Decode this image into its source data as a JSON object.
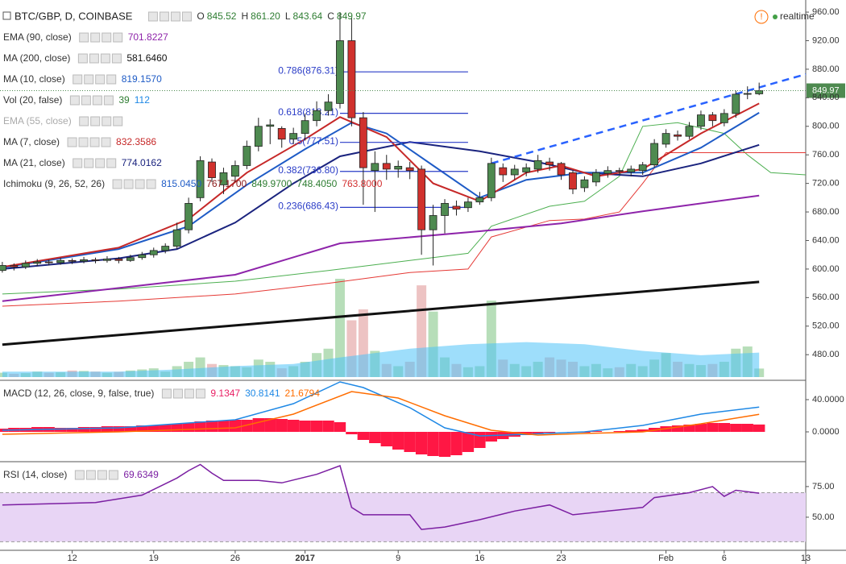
{
  "header": {
    "ohlc": [
      {
        "key": "O",
        "text": "845.52"
      },
      {
        "key": "H",
        "text": "861.20"
      },
      {
        "key": "L",
        "text": "843.64"
      },
      {
        "key": "C",
        "text": "849.97"
      }
    ],
    "status": "realtime"
  },
  "indicators": [
    {
      "name": "EMA (90, close)",
      "values": [
        {
          "text": "701.8227",
          "color": "#8e24aa"
        }
      ]
    },
    {
      "name": "MA (200, close)",
      "values": [
        {
          "text": "581.6460",
          "color": "#111111"
        }
      ]
    },
    {
      "name": "MA (10, close)",
      "values": [
        {
          "text": "819.1570",
          "color": "#1e5bc6"
        }
      ]
    },
    {
      "name": "Vol (20, false)",
      "values": [
        {
          "text": "39",
          "color": "#2e7d32"
        },
        {
          "text": "112",
          "color": "#1e88e5"
        }
      ]
    },
    {
      "name": "EMA (55, close)",
      "muted": true,
      "values": []
    },
    {
      "name": "MA (7, close)",
      "values": [
        {
          "text": "832.3586",
          "color": "#c62828"
        }
      ]
    },
    {
      "name": "MA (21, close)",
      "values": [
        {
          "text": "774.0162",
          "color": "#1a237e"
        }
      ]
    },
    {
      "name": "Ichimoku (9, 26, 52, 26)",
      "values": [
        {
          "text": "815.0450",
          "color": "#1e5bc6"
        },
        {
          "text": "767.1700",
          "color": "#8b1a1a"
        },
        {
          "text": "849.9700",
          "color": "#2e7d32"
        },
        {
          "text": "748.4050",
          "color": "#2e7d32"
        },
        {
          "text": "763.8000",
          "color": "#d32f2f"
        }
      ]
    }
  ],
  "chart_data": [
    {
      "type": "candlestick",
      "title": "BTC/GBP, D, COINBASE",
      "xlim": [
        -0.2,
        69
      ],
      "ylim": [
        452,
        977
      ],
      "xticks": [
        {
          "value": 6,
          "label": "12"
        },
        {
          "value": 13,
          "label": "19"
        },
        {
          "value": 20,
          "label": "26"
        },
        {
          "value": 26,
          "label": "2017"
        },
        {
          "value": 34,
          "label": "9"
        },
        {
          "value": 41,
          "label": "16"
        },
        {
          "value": 48,
          "label": "23"
        },
        {
          "value": 57,
          "label": "Feb"
        },
        {
          "value": 62,
          "label": "6"
        },
        {
          "value": 69,
          "label": "13"
        }
      ],
      "yticks": [
        {
          "value": 960,
          "label": "960.00"
        },
        {
          "value": 920,
          "label": "920.00"
        },
        {
          "value": 880,
          "label": "880.00"
        },
        {
          "value": 840,
          "label": "840.00"
        },
        {
          "value": 800,
          "label": "800.00"
        },
        {
          "value": 760,
          "label": "760.00"
        },
        {
          "value": 720,
          "label": "720.00"
        },
        {
          "value": 680,
          "label": "680.00"
        },
        {
          "value": 640,
          "label": "640.00"
        },
        {
          "value": 600,
          "label": "600.00"
        },
        {
          "value": 560,
          "label": "560.00"
        },
        {
          "value": 520,
          "label": "520.00"
        },
        {
          "value": 480,
          "label": "480.00"
        }
      ],
      "up_color": "#4e8a50",
      "down_color": "#d0312d",
      "open": [
        598,
        605,
        603,
        608,
        610,
        609,
        612,
        611,
        613,
        612,
        614,
        612,
        616,
        620,
        626,
        632,
        655,
        700,
        750,
        718,
        730,
        745,
        772,
        800,
        797,
        782,
        790,
        808,
        822,
        832,
        920,
        812,
        738,
        748,
        740,
        742,
        740,
        655,
        675,
        688,
        686,
        694,
        700,
        742,
        732,
        736,
        740,
        750,
        748,
        735,
        714,
        722,
        734,
        738,
        736,
        738,
        746,
        775,
        788,
        786,
        800,
        816,
        805,
        818,
        845,
        845.52
      ],
      "high": [
        610,
        608,
        612,
        614,
        613,
        616,
        615,
        617,
        616,
        618,
        617,
        620,
        624,
        630,
        636,
        665,
        700,
        758,
        755,
        742,
        752,
        780,
        812,
        810,
        800,
        798,
        818,
        835,
        845,
        960,
        952,
        820,
        765,
        760,
        752,
        750,
        745,
        690,
        698,
        696,
        700,
        708,
        756,
        748,
        746,
        748,
        760,
        756,
        750,
        738,
        730,
        740,
        744,
        742,
        745,
        750,
        782,
        796,
        794,
        806,
        822,
        820,
        824,
        850,
        856,
        861.2
      ],
      "low": [
        595,
        598,
        600,
        604,
        605,
        606,
        607,
        608,
        608,
        609,
        608,
        610,
        613,
        616,
        622,
        628,
        650,
        695,
        722,
        705,
        722,
        740,
        765,
        775,
        770,
        775,
        780,
        800,
        815,
        825,
        800,
        690,
        680,
        725,
        728,
        726,
        620,
        605,
        650,
        675,
        680,
        690,
        695,
        722,
        725,
        730,
        735,
        738,
        725,
        705,
        708,
        716,
        728,
        732,
        730,
        732,
        742,
        770,
        780,
        782,
        795,
        800,
        800,
        812,
        838,
        843.64
      ],
      "close": [
        605,
        603,
        608,
        610,
        609,
        612,
        611,
        613,
        612,
        614,
        612,
        616,
        620,
        626,
        632,
        655,
        692,
        752,
        728,
        735,
        745,
        772,
        800,
        802,
        782,
        790,
        808,
        822,
        834,
        920,
        812,
        742,
        748,
        740,
        744,
        738,
        655,
        675,
        692,
        684,
        694,
        700,
        748,
        732,
        740,
        742,
        752,
        746,
        732,
        712,
        725,
        735,
        738,
        737,
        740,
        746,
        776,
        790,
        786,
        800,
        816,
        808,
        818,
        845,
        846,
        849.97
      ],
      "volume": {
        "up_color": "#a5d6a7",
        "down_color": "#e8b4b4",
        "values": [
          20,
          15,
          18,
          25,
          20,
          22,
          30,
          28,
          25,
          20,
          24,
          30,
          35,
          40,
          25,
          50,
          70,
          90,
          60,
          55,
          50,
          45,
          80,
          70,
          40,
          50,
          70,
          110,
          130,
          450,
          260,
          310,
          120,
          60,
          50,
          70,
          420,
          300,
          90,
          60,
          45,
          50,
          350,
          80,
          60,
          50,
          70,
          90,
          80,
          70,
          50,
          60,
          40,
          45,
          60,
          50,
          80,
          110,
          70,
          60,
          55,
          60,
          70,
          130,
          140,
          39
        ],
        "ma": {
          "color": "#4fc3f7",
          "x": [
            0,
            10,
            15,
            20,
            25,
            29,
            35,
            40,
            45,
            50,
            55,
            60,
            65
          ],
          "values": [
            25,
            25,
            35,
            50,
            60,
            90,
            130,
            150,
            160,
            150,
            120,
            100,
            112
          ]
        }
      },
      "series": [
        {
          "color": "#4caf50",
          "width": 1,
          "x": [
            0,
            10,
            20,
            28,
            35,
            40,
            42,
            47,
            50,
            53,
            55,
            58,
            62,
            64,
            66,
            69
          ],
          "values": [
            565,
            572,
            583,
            598,
            612,
            622,
            660,
            688,
            695,
            730,
            800,
            805,
            790,
            760,
            735,
            732
          ]
        },
        {
          "color": "#e53935",
          "width": 1,
          "x": [
            0,
            10,
            20,
            28,
            35,
            40,
            42,
            47,
            50,
            53,
            55,
            57,
            69
          ],
          "values": [
            548,
            555,
            565,
            580,
            595,
            600,
            645,
            668,
            670,
            680,
            720,
            763,
            763
          ]
        },
        {
          "color": "#111111",
          "width": 3,
          "x": [
            0,
            65
          ],
          "values": [
            494,
            582
          ]
        },
        {
          "color": "#8e24aa",
          "width": 2,
          "x": [
            0,
            20,
            29,
            41,
            48,
            55,
            65
          ],
          "values": [
            555,
            592,
            636,
            653,
            664,
            681,
            703
          ]
        },
        {
          "color": "#1a237e",
          "width": 2,
          "x": [
            0,
            10,
            15,
            20,
            25,
            29,
            35,
            41,
            46,
            50,
            55,
            60,
            65
          ],
          "values": [
            600,
            615,
            628,
            665,
            720,
            758,
            778,
            765,
            750,
            735,
            730,
            748,
            774
          ]
        },
        {
          "color": "#1e5bc6",
          "width": 2,
          "x": [
            0,
            10,
            16,
            21,
            26,
            30,
            33,
            37,
            41,
            45,
            50,
            55,
            60,
            65
          ],
          "values": [
            602,
            628,
            660,
            718,
            768,
            805,
            790,
            745,
            700,
            725,
            735,
            735,
            770,
            819
          ]
        },
        {
          "color": "#c62828",
          "width": 2,
          "x": [
            0,
            10,
            16,
            21,
            26,
            29,
            33,
            37,
            41,
            45,
            48,
            51,
            55,
            60,
            65
          ],
          "values": [
            603,
            630,
            670,
            735,
            782,
            813,
            785,
            720,
            695,
            735,
            745,
            730,
            740,
            790,
            832
          ]
        }
      ],
      "trendline": {
        "color": "#2962ff",
        "x": [
          42,
          69
        ],
        "values": [
          748,
          873
        ]
      },
      "fib": {
        "color": "#2a3cc7",
        "x": [
          29,
          40
        ],
        "levels": [
          {
            "value": 876.31,
            "label": "0.786(876.31)"
          },
          {
            "value": 818.21,
            "label": "0.618(818.21)"
          },
          {
            "value": 777.51,
            "label": "0.5(777.51)"
          },
          {
            "value": 736.8,
            "label": "0.382(736.80)"
          },
          {
            "value": 686.43,
            "label": "0.236(686.43)"
          }
        ]
      },
      "last_price": {
        "value": 849.97,
        "label": "849.97",
        "color": "#4e8a50"
      }
    },
    {
      "type": "macd",
      "title": "MACD (12, 26, close, 9, false, true)",
      "legend_values": [
        {
          "text": "9.1347",
          "color": "#e91e63"
        },
        {
          "text": "30.8141",
          "color": "#1e88e5"
        },
        {
          "text": "21.6794",
          "color": "#ff6d00"
        }
      ],
      "ylim": [
        -35,
        62
      ],
      "yticks": [
        {
          "value": 40,
          "label": "40.0000"
        },
        {
          "value": 0,
          "label": "0.0000"
        }
      ],
      "histogram": {
        "color": "#ff1744",
        "values": [
          4,
          5,
          5,
          6,
          6,
          5,
          5,
          6,
          6,
          7,
          7,
          7,
          8,
          8,
          9,
          10,
          11,
          13,
          14,
          14,
          15,
          15,
          17,
          17,
          16,
          15,
          14,
          14,
          14,
          12,
          -3,
          -10,
          -14,
          -18,
          -22,
          -25,
          -28,
          -30,
          -31,
          -29,
          -25,
          -20,
          -12,
          -9,
          -6,
          -4,
          -2,
          -1,
          0,
          -1,
          -1,
          1,
          0,
          1,
          2,
          3,
          5,
          7,
          8,
          9,
          10,
          11,
          11,
          10,
          10,
          9.13
        ]
      },
      "series": [
        {
          "color": "#1e88e5",
          "width": 1.5,
          "x": [
            0,
            10,
            20,
            25,
            29,
            31,
            35,
            38,
            41,
            45,
            50,
            55,
            60,
            65
          ],
          "values": [
            2,
            5,
            15,
            35,
            62,
            55,
            30,
            5,
            -5,
            -3,
            0,
            8,
            22,
            30.81
          ]
        },
        {
          "color": "#ff6d00",
          "width": 1.5,
          "x": [
            0,
            10,
            20,
            25,
            30,
            34,
            38,
            42,
            46,
            50,
            55,
            60,
            65
          ],
          "values": [
            -3,
            0,
            5,
            22,
            50,
            42,
            20,
            2,
            -4,
            -2,
            0,
            10,
            21.68
          ]
        }
      ]
    },
    {
      "type": "line",
      "title": "RSI (14, close)",
      "legend_values": [
        {
          "text": "69.6349",
          "color": "#7b1fa2"
        }
      ],
      "ylim": [
        23,
        94
      ],
      "yticks": [
        {
          "value": 75,
          "label": "75.00"
        },
        {
          "value": 50,
          "label": "50.00"
        }
      ],
      "bands": [
        30,
        70
      ],
      "band_color": "#e8d5f5",
      "series": [
        {
          "color": "#7b1fa2",
          "width": 1.5,
          "x": [
            0,
            8,
            12,
            15,
            16,
            17,
            18,
            19,
            22,
            24,
            27,
            29,
            30,
            31,
            35,
            36,
            38,
            41,
            44,
            47,
            49,
            52,
            55,
            56,
            59,
            61,
            62,
            63,
            65
          ],
          "values": [
            60,
            62,
            68,
            82,
            88,
            93,
            86,
            80,
            80,
            78,
            85,
            92,
            58,
            52,
            52,
            40,
            42,
            48,
            55,
            60,
            52,
            55,
            58,
            66,
            70,
            75,
            67,
            72,
            69.63
          ]
        }
      ]
    }
  ]
}
